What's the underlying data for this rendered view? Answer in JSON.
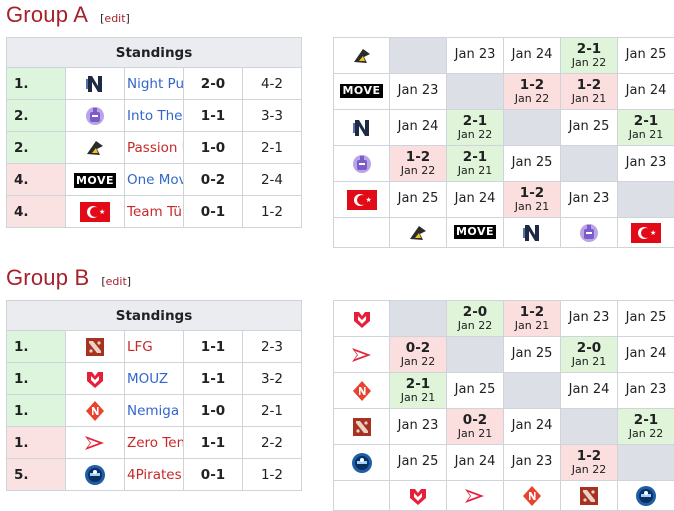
{
  "groups": [
    {
      "title": "Group A",
      "edit": "edit",
      "standings_header": "Standings",
      "teams": [
        {
          "rank": "1.",
          "status": "green",
          "name": "Night Pulse",
          "record": "2-0",
          "maps": "4-2",
          "logo": "night-pulse-logo",
          "link": "blue"
        },
        {
          "rank": "2.",
          "status": "green",
          "name": "Into The Breach",
          "record": "1-1",
          "maps": "3-3",
          "logo": "into-the-breach-logo",
          "link": "blue"
        },
        {
          "rank": "2.",
          "status": "green",
          "name": "Passion UA",
          "record": "1-0",
          "maps": "2-1",
          "logo": "passion-ua-logo",
          "link": "red"
        },
        {
          "rank": "4.",
          "status": "red",
          "name": "One Move",
          "record": "0-2",
          "maps": "2-4",
          "logo": "one-move-logo",
          "link": "blue"
        },
        {
          "rank": "4.",
          "status": "red",
          "name": "Team Türkiye",
          "record": "0-1",
          "maps": "1-2",
          "logo": "team-turkiye-logo",
          "link": "red"
        }
      ],
      "matrix_logos": [
        "passion-ua-logo",
        "one-move-logo",
        "night-pulse-logo",
        "into-the-breach-logo",
        "team-turkiye-logo"
      ],
      "matrix": [
        [
          null,
          {
            "date": "Jan 23"
          },
          {
            "date": "Jan 24"
          },
          {
            "score": "2-1",
            "date": "Jan 22",
            "result": "win"
          },
          {
            "date": "Jan 25"
          }
        ],
        [
          {
            "date": "Jan 23"
          },
          null,
          {
            "score": "1-2",
            "date": "Jan 22",
            "result": "loss"
          },
          {
            "score": "1-2",
            "date": "Jan 21",
            "result": "loss"
          },
          {
            "date": "Jan 24"
          }
        ],
        [
          {
            "date": "Jan 24"
          },
          {
            "score": "2-1",
            "date": "Jan 22",
            "result": "win"
          },
          null,
          {
            "date": "Jan 25"
          },
          {
            "score": "2-1",
            "date": "Jan 21",
            "result": "win"
          }
        ],
        [
          {
            "score": "1-2",
            "date": "Jan 22",
            "result": "loss"
          },
          {
            "score": "2-1",
            "date": "Jan 21",
            "result": "win"
          },
          {
            "date": "Jan 25"
          },
          null,
          {
            "date": "Jan 23"
          }
        ],
        [
          {
            "date": "Jan 25"
          },
          {
            "date": "Jan 24"
          },
          {
            "score": "1-2",
            "date": "Jan 21",
            "result": "loss"
          },
          {
            "date": "Jan 23"
          },
          null
        ]
      ]
    },
    {
      "title": "Group B",
      "edit": "edit",
      "standings_header": "Standings",
      "teams": [
        {
          "rank": "1.",
          "status": "green",
          "name": "LFG",
          "record": "1-1",
          "maps": "2-3",
          "logo": "lfg-logo",
          "link": "red"
        },
        {
          "rank": "1.",
          "status": "green",
          "name": "MOUZ",
          "record": "1-1",
          "maps": "3-2",
          "logo": "mouz-logo",
          "link": "blue"
        },
        {
          "rank": "1.",
          "status": "green",
          "name": "Nemiga Gaming",
          "record": "1-0",
          "maps": "2-1",
          "logo": "nemiga-logo",
          "link": "blue"
        },
        {
          "rank": "1.",
          "status": "red",
          "name": "Zero Tenacity",
          "record": "1-1",
          "maps": "2-2",
          "logo": "zero-tenacity-logo",
          "link": "red"
        },
        {
          "rank": "5.",
          "status": "red",
          "name": "4Pirates",
          "record": "0-1",
          "maps": "1-2",
          "logo": "4pirates-logo",
          "link": "red"
        }
      ],
      "matrix_logos": [
        "mouz-logo",
        "zero-tenacity-logo",
        "nemiga-logo",
        "lfg-logo",
        "4pirates-logo"
      ],
      "matrix": [
        [
          null,
          {
            "score": "2-0",
            "date": "Jan 22",
            "result": "win"
          },
          {
            "score": "1-2",
            "date": "Jan 21",
            "result": "loss"
          },
          {
            "date": "Jan 23"
          },
          {
            "date": "Jan 25"
          }
        ],
        [
          {
            "score": "0-2",
            "date": "Jan 22",
            "result": "loss"
          },
          null,
          {
            "date": "Jan 25"
          },
          {
            "score": "2-0",
            "date": "Jan 21",
            "result": "win"
          },
          {
            "date": "Jan 24"
          }
        ],
        [
          {
            "score": "2-1",
            "date": "Jan 21",
            "result": "win"
          },
          {
            "date": "Jan 25"
          },
          null,
          {
            "date": "Jan 24"
          },
          {
            "date": "Jan 23"
          }
        ],
        [
          {
            "date": "Jan 23"
          },
          {
            "score": "0-2",
            "date": "Jan 21",
            "result": "loss"
          },
          {
            "date": "Jan 24"
          },
          null,
          {
            "score": "2-1",
            "date": "Jan 22",
            "result": "win"
          }
        ],
        [
          {
            "date": "Jan 25"
          },
          {
            "date": "Jan 24"
          },
          {
            "date": "Jan 23"
          },
          {
            "score": "1-2",
            "date": "Jan 22",
            "result": "loss"
          },
          null
        ]
      ]
    }
  ],
  "logo_text": {
    "one-move-logo": "MOVE"
  },
  "colors": {
    "group_title": "#a5222c",
    "link_blue": "#3366cc",
    "link_red": "#c62929",
    "win_bg": "#dff4d9",
    "loss_bg": "#fbdede",
    "self_bg": "#dcdfe5"
  }
}
